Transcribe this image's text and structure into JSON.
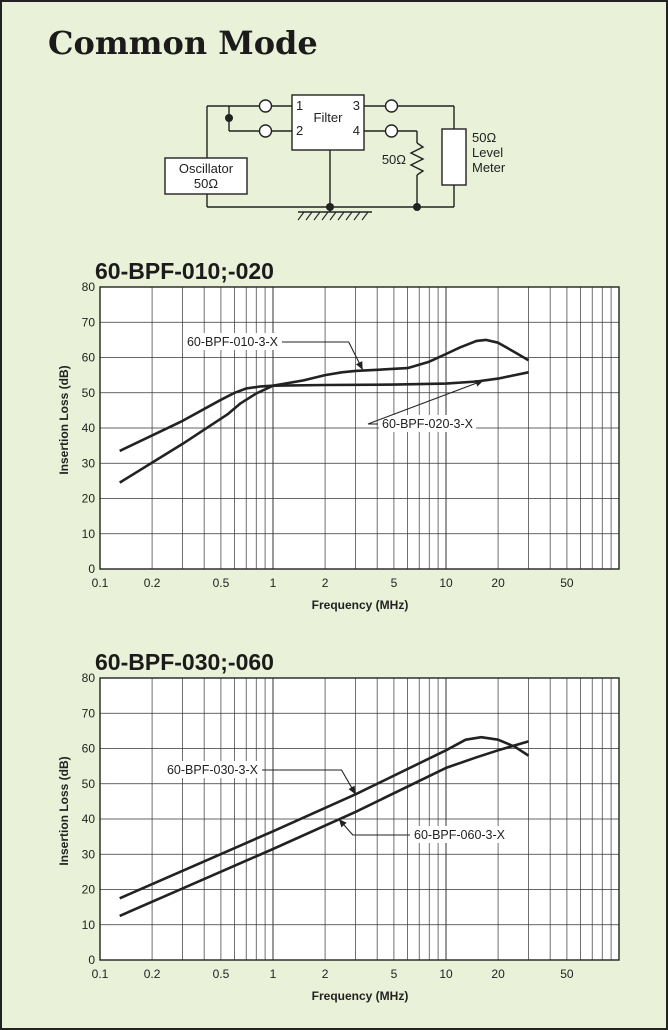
{
  "page": {
    "title": "Common Mode",
    "background_color": "#e9f1d8",
    "line_color": "#222222"
  },
  "schematic": {
    "filter_label": "Filter",
    "pin_labels": [
      "1",
      "2",
      "3",
      "4"
    ],
    "oscillator_label": "Oscillator",
    "oscillator_impedance": "50Ω",
    "resistor_label": "50Ω",
    "meter_impedance": "50Ω",
    "meter_label_line1": "Level",
    "meter_label_line2": "Meter"
  },
  "chart_data": [
    {
      "type": "line",
      "title": "60-BPF-010;-020",
      "xlabel": "Frequency (MHz)",
      "ylabel": "Insertion Loss (dB)",
      "x_scale": "log",
      "xlim": [
        0.1,
        100
      ],
      "ylim": [
        0,
        80
      ],
      "grid": true,
      "x_tick_values": [
        0.1,
        0.2,
        0.5,
        1,
        2,
        5,
        10,
        20,
        50
      ],
      "x_tick_labels": [
        "0.1",
        "0.2",
        "0.5",
        "1",
        "2",
        "5",
        "10",
        "20",
        "50"
      ],
      "y_tick_values": [
        0,
        10,
        20,
        30,
        40,
        50,
        60,
        70,
        80
      ],
      "y_tick_labels": [
        "0",
        "10",
        "20",
        "30",
        "40",
        "50",
        "60",
        "70",
        "80"
      ],
      "series": [
        {
          "name": "60-BPF-010-3-X",
          "x": [
            0.13,
            0.3,
            0.55,
            0.65,
            0.8,
            1.0,
            1.5,
            2.0,
            2.5,
            3.0,
            4.0,
            5.0,
            6.0,
            8.0,
            10.0,
            12.0,
            15.0,
            17.0,
            20.0,
            25.0,
            30.0
          ],
          "y": [
            24.5,
            35.5,
            44.0,
            47.0,
            49.8,
            52.0,
            53.5,
            55.0,
            55.8,
            56.2,
            56.5,
            56.8,
            57.0,
            58.8,
            61.0,
            62.8,
            64.7,
            65.0,
            64.2,
            61.5,
            59.2
          ]
        },
        {
          "name": "60-BPF-020-3-X",
          "x": [
            0.13,
            0.3,
            0.5,
            0.6,
            0.7,
            0.85,
            1.0,
            2.0,
            5.0,
            10.0,
            15.0,
            20.0,
            25.0,
            30.0
          ],
          "y": [
            33.5,
            42.0,
            48.0,
            50.0,
            51.2,
            51.8,
            52.0,
            52.2,
            52.3,
            52.6,
            53.2,
            54.0,
            55.0,
            55.8
          ]
        }
      ],
      "annotations": [
        {
          "text": "60-BPF-010-3-X",
          "points_to": [
            3.3,
            56.5
          ]
        },
        {
          "text": "60-BPF-020-3-X",
          "points_to": [
            16.5,
            53.5
          ]
        }
      ]
    },
    {
      "type": "line",
      "title": "60-BPF-030;-060",
      "xlabel": "Frequency (MHz)",
      "ylabel": "Insertion Loss (dB)",
      "x_scale": "log",
      "xlim": [
        0.1,
        100
      ],
      "ylim": [
        0,
        80
      ],
      "grid": true,
      "x_tick_values": [
        0.1,
        0.2,
        0.5,
        1,
        2,
        5,
        10,
        20,
        50
      ],
      "x_tick_labels": [
        "0.1",
        "0.2",
        "0.5",
        "1",
        "2",
        "5",
        "10",
        "20",
        "50"
      ],
      "y_tick_values": [
        0,
        10,
        20,
        30,
        40,
        50,
        60,
        70,
        80
      ],
      "y_tick_labels": [
        "0",
        "10",
        "20",
        "30",
        "40",
        "50",
        "60",
        "70",
        "80"
      ],
      "series": [
        {
          "name": "60-BPF-030-3-X",
          "x": [
            0.13,
            1.0,
            3.0,
            10.0,
            13.0,
            16.0,
            20.0,
            25.0,
            30.0
          ],
          "y": [
            17.5,
            36.5,
            47.0,
            59.5,
            62.5,
            63.2,
            62.5,
            60.5,
            58.0
          ]
        },
        {
          "name": "60-BPF-060-3-X",
          "x": [
            0.13,
            1.0,
            3.0,
            10.0,
            15.0,
            20.0,
            30.0
          ],
          "y": [
            12.5,
            31.5,
            42.0,
            54.5,
            57.5,
            59.5,
            62.0
          ]
        }
      ],
      "annotations": [
        {
          "text": "60-BPF-030-3-X",
          "points_to": [
            3.0,
            47.0
          ]
        },
        {
          "text": "60-BPF-060-3-X",
          "points_to": [
            2.4,
            40.0
          ]
        }
      ]
    }
  ]
}
